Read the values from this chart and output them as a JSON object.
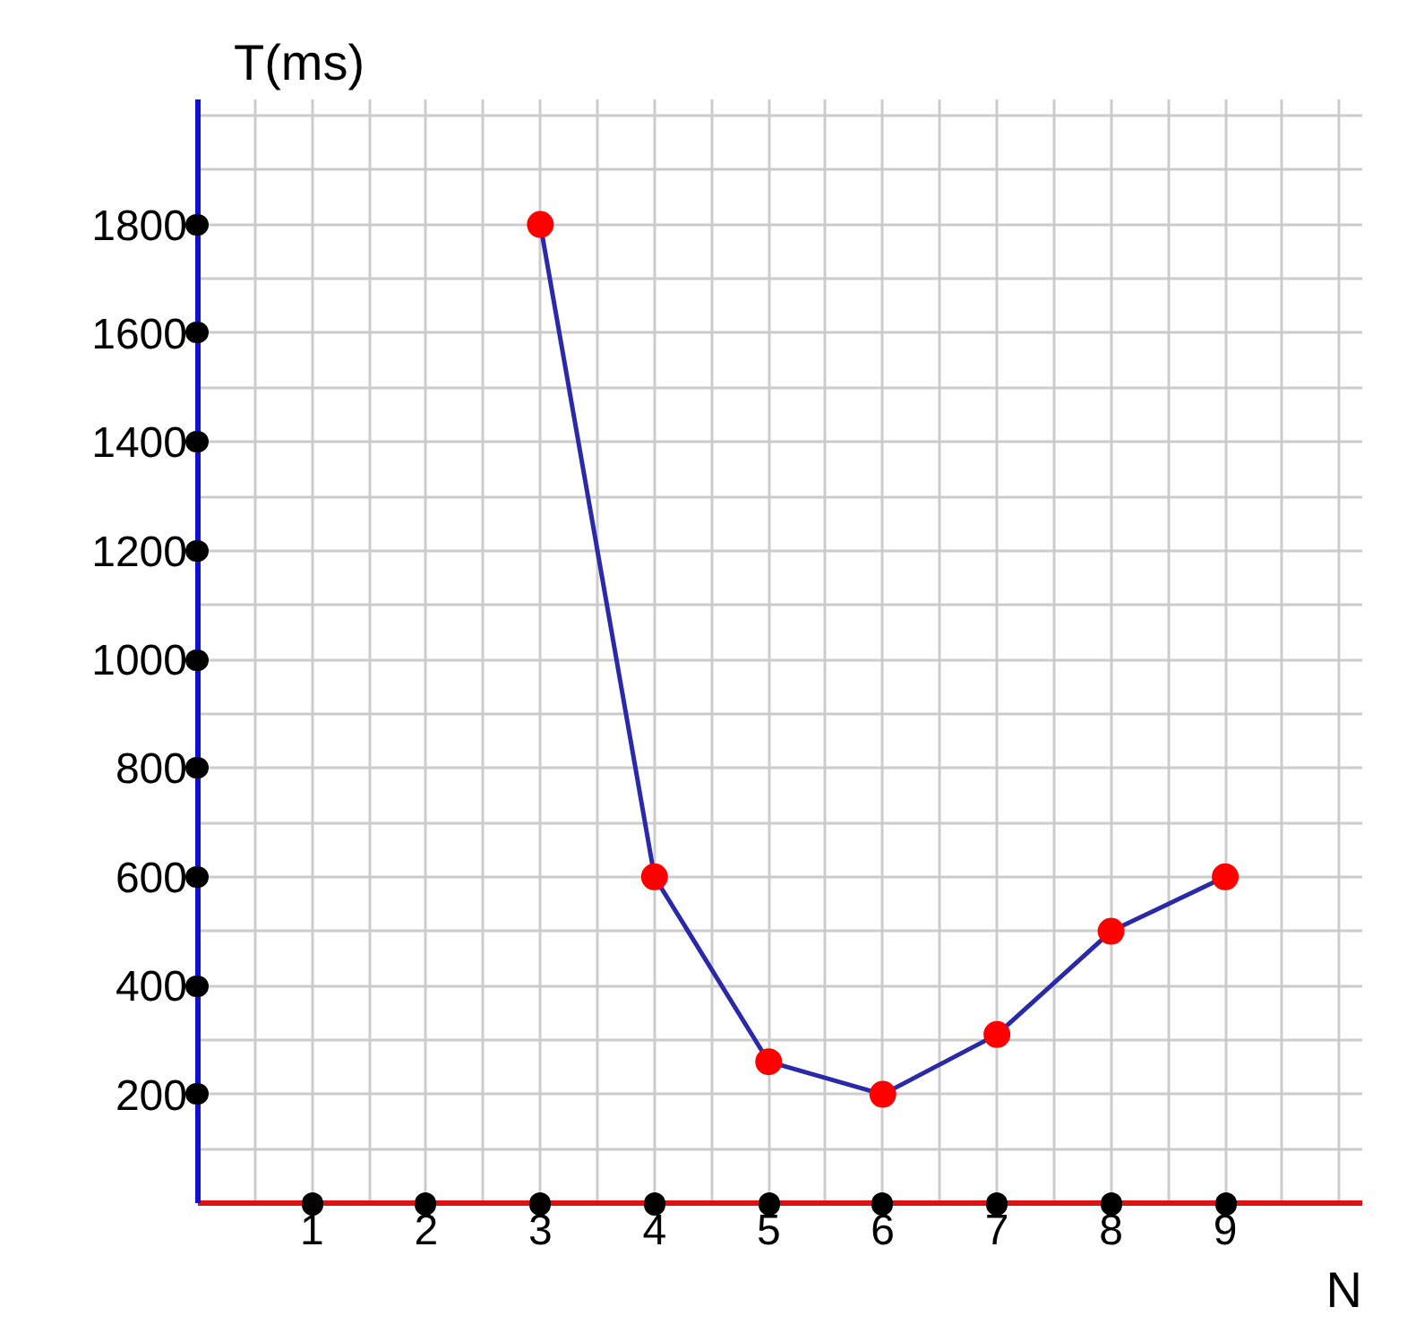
{
  "chart_data": {
    "type": "line",
    "xlabel": "N",
    "ylabel": "T(ms)",
    "x": [
      3,
      4,
      5,
      6,
      7,
      8,
      9
    ],
    "series": [
      {
        "color": "#2a2aa8",
        "values": [
          1800,
          600,
          260,
          200,
          310,
          500,
          600
        ]
      }
    ],
    "marker": "circle",
    "xlim": [
      0,
      10.2
    ],
    "ylim": [
      0,
      2030
    ],
    "xticks": [
      1,
      2,
      3,
      4,
      5,
      6,
      7,
      8,
      9
    ],
    "yticks": [
      200,
      400,
      600,
      800,
      1000,
      1200,
      1400,
      1600,
      1800
    ],
    "grid": true
  }
}
